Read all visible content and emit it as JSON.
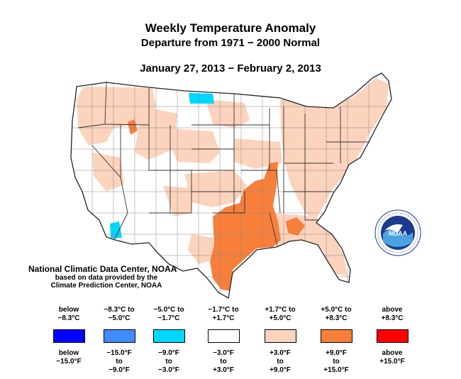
{
  "title": "Weekly Temperature Anomaly",
  "subtitle": "Departure from 1971 − 2000 Normal",
  "date_range": "January 27, 2013 − February 2, 2013",
  "credits": {
    "line1": "National Climatic Data Center, NOAA",
    "line2": "based on data provided by the",
    "line3": "Climate Prediction Center, NOAA"
  },
  "logo": {
    "text": "NOAA",
    "icon": "noaa-seal-icon"
  },
  "legend": [
    {
      "c_top": "below",
      "c_bot": "−8.3°C",
      "f_top": "below",
      "f_mid": "−15.0°F",
      "f_bot": "",
      "color": "#0000ff"
    },
    {
      "c_top": "−8.3°C to",
      "c_bot": "−5.0°C",
      "f_top": "−15.0°F",
      "f_mid": "to",
      "f_bot": "−9.0°F",
      "color": "#3f8cff"
    },
    {
      "c_top": "−5.0°C to",
      "c_bot": "−1.7°C",
      "f_top": "−9.0°F",
      "f_mid": "to",
      "f_bot": "−3.0°F",
      "color": "#00d8ff"
    },
    {
      "c_top": "−1.7°C to",
      "c_bot": "+1.7°C",
      "f_top": "−3.0°F",
      "f_mid": "to",
      "f_bot": "+3.0°F",
      "color": "#ffffff"
    },
    {
      "c_top": "+1.7°C to",
      "c_bot": "+5.0°C",
      "f_top": "+3.0°F",
      "f_mid": "to",
      "f_bot": "+9.0°F",
      "color": "#fcd3bd"
    },
    {
      "c_top": "+5.0°C to",
      "c_bot": "+8.3°C",
      "f_top": "+9.0°F",
      "f_mid": "to",
      "f_bot": "+15.0°F",
      "color": "#f77f3a"
    },
    {
      "c_top": "above",
      "c_bot": "+8.3°C",
      "f_top": "above",
      "f_mid": "+15.0°F",
      "f_bot": "",
      "color": "#ff0000"
    }
  ]
}
